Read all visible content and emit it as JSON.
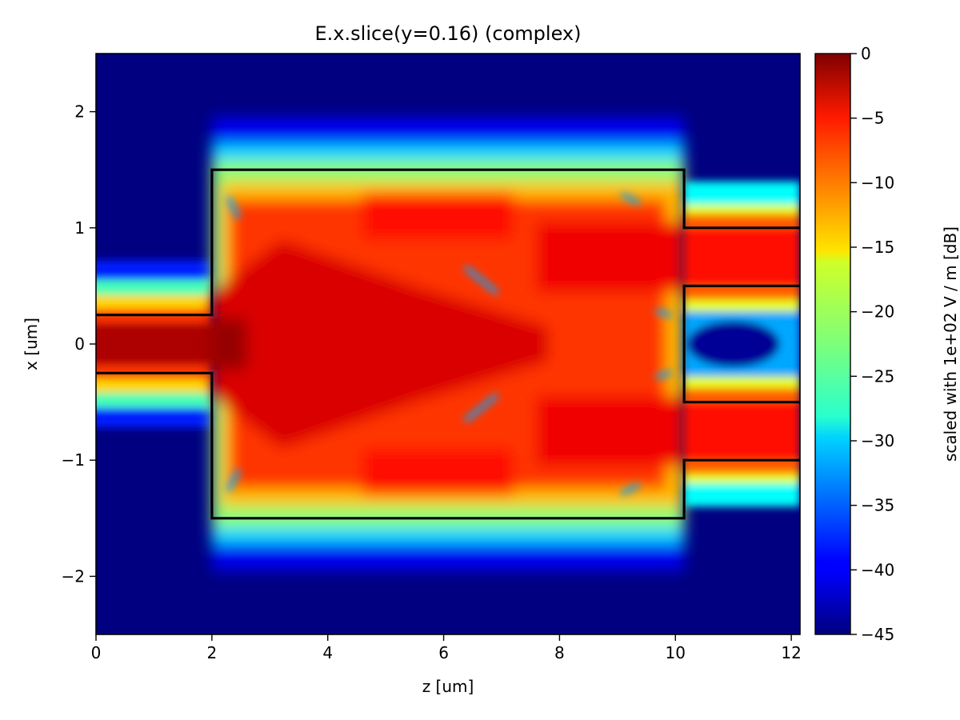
{
  "chart_data": {
    "type": "heatmap",
    "title": "E.x.slice(y=0.16) (complex)",
    "xlabel": "z [um]",
    "ylabel": "x [um]",
    "colorbar_label": "scaled with 1e+02 V / m [dB]",
    "xlim": [
      0,
      12.15
    ],
    "ylim": [
      -2.5,
      2.5
    ],
    "clim": [
      -45,
      0
    ],
    "x_ticks": [
      0,
      2,
      4,
      6,
      8,
      10,
      12
    ],
    "x_tick_labels": [
      "0",
      "2",
      "4",
      "6",
      "8",
      "10",
      "12"
    ],
    "y_ticks": [
      -2,
      -1,
      0,
      1,
      2
    ],
    "y_tick_labels": [
      "−2",
      "−1",
      "0",
      "1",
      "2"
    ],
    "colorbar_ticks": [
      0,
      -5,
      -10,
      -15,
      -20,
      -25,
      -30,
      -35,
      -40,
      -45
    ],
    "colorbar_tick_labels": [
      "0",
      "−5",
      "−10",
      "−15",
      "−20",
      "−25",
      "−30",
      "−35",
      "−40",
      "−45"
    ],
    "colormap": "jet",
    "grid": false,
    "structure_outline": {
      "color": "#000000",
      "input_waveguide": {
        "z": [
          0,
          2.0
        ],
        "x": [
          -0.25,
          0.25
        ]
      },
      "mmi_region": {
        "z": [
          2.0,
          10.15
        ],
        "x": [
          -1.5,
          1.5
        ]
      },
      "output_waveguides": [
        {
          "z": [
            10.15,
            12.15
          ],
          "x": [
            0.5,
            1.0
          ]
        },
        {
          "z": [
            10.15,
            12.15
          ],
          "x": [
            -1.0,
            -0.5
          ]
        }
      ]
    },
    "field_levels_db": {
      "input_waveguide_core": -2,
      "mmi_interior": -8,
      "mmi_near_edges": -22,
      "output_waveguide_core": -6,
      "output_gap_center": -44,
      "background": -45
    }
  }
}
